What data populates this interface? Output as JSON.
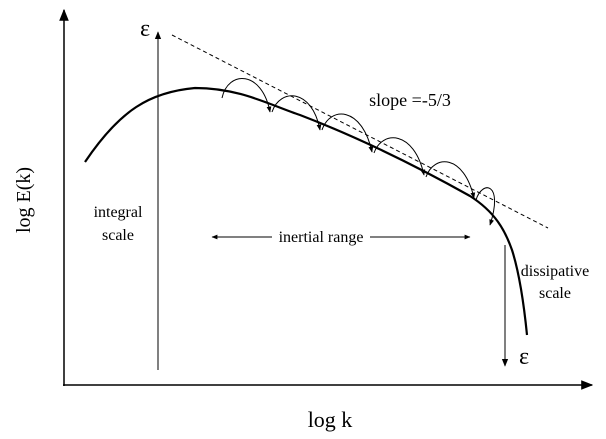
{
  "axes": {
    "x_label": "log k",
    "y_label": "log E(k)"
  },
  "labels": {
    "epsilon_top": "ε",
    "epsilon_bottom": "ε",
    "slope": "slope =-5/3",
    "integral_scale": [
      "integral",
      "scale"
    ],
    "inertial_range": "inertial range",
    "dissipative_scale": [
      "dissipative",
      "scale"
    ]
  }
}
